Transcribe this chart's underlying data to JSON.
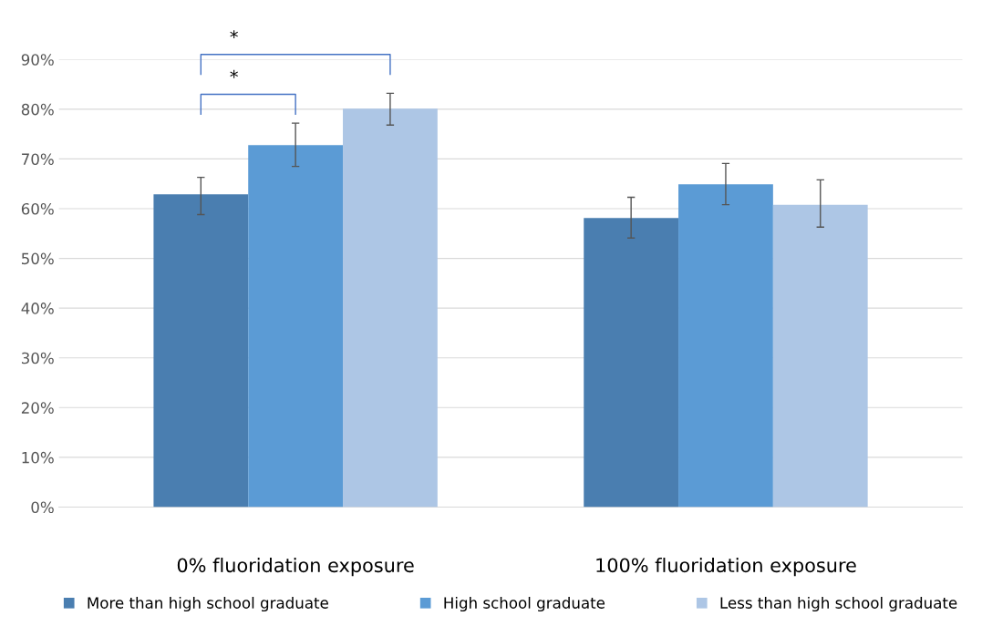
{
  "chart_data": {
    "type": "bar",
    "categories": [
      "0% fluoridation exposure",
      "100% fluoridation exposure"
    ],
    "series": [
      {
        "name": "More than high school graduate",
        "color": "#4a7eb0",
        "values": [
          62.9,
          58.1
        ],
        "errors": [
          [
            58.8,
            66.3
          ],
          [
            54.1,
            62.3
          ]
        ]
      },
      {
        "name": "High school graduate",
        "color": "#5b9bd5",
        "values": [
          72.8,
          64.9
        ],
        "errors": [
          [
            68.5,
            77.2
          ],
          [
            60.8,
            69.1
          ]
        ]
      },
      {
        "name": "Less than high school graduate",
        "color": "#adc6e5",
        "values": [
          80.1,
          60.8
        ],
        "errors": [
          [
            76.8,
            83.2
          ],
          [
            56.3,
            65.8
          ]
        ]
      }
    ],
    "ylim": [
      0,
      90
    ],
    "yticks": [
      {
        "value": 0,
        "label": "0%"
      },
      {
        "value": 10,
        "label": "10%"
      },
      {
        "value": 20,
        "label": "20%"
      },
      {
        "value": 30,
        "label": "30%"
      },
      {
        "value": 40,
        "label": "40%"
      },
      {
        "value": 50,
        "label": "50%"
      },
      {
        "value": 60,
        "label": "60%"
      },
      {
        "value": 70,
        "label": "70%"
      },
      {
        "value": 80,
        "label": "80%"
      },
      {
        "value": 90,
        "label": "90%"
      }
    ],
    "grid": "y",
    "legend": "bottom",
    "annotations": [
      "*",
      "*"
    ]
  }
}
